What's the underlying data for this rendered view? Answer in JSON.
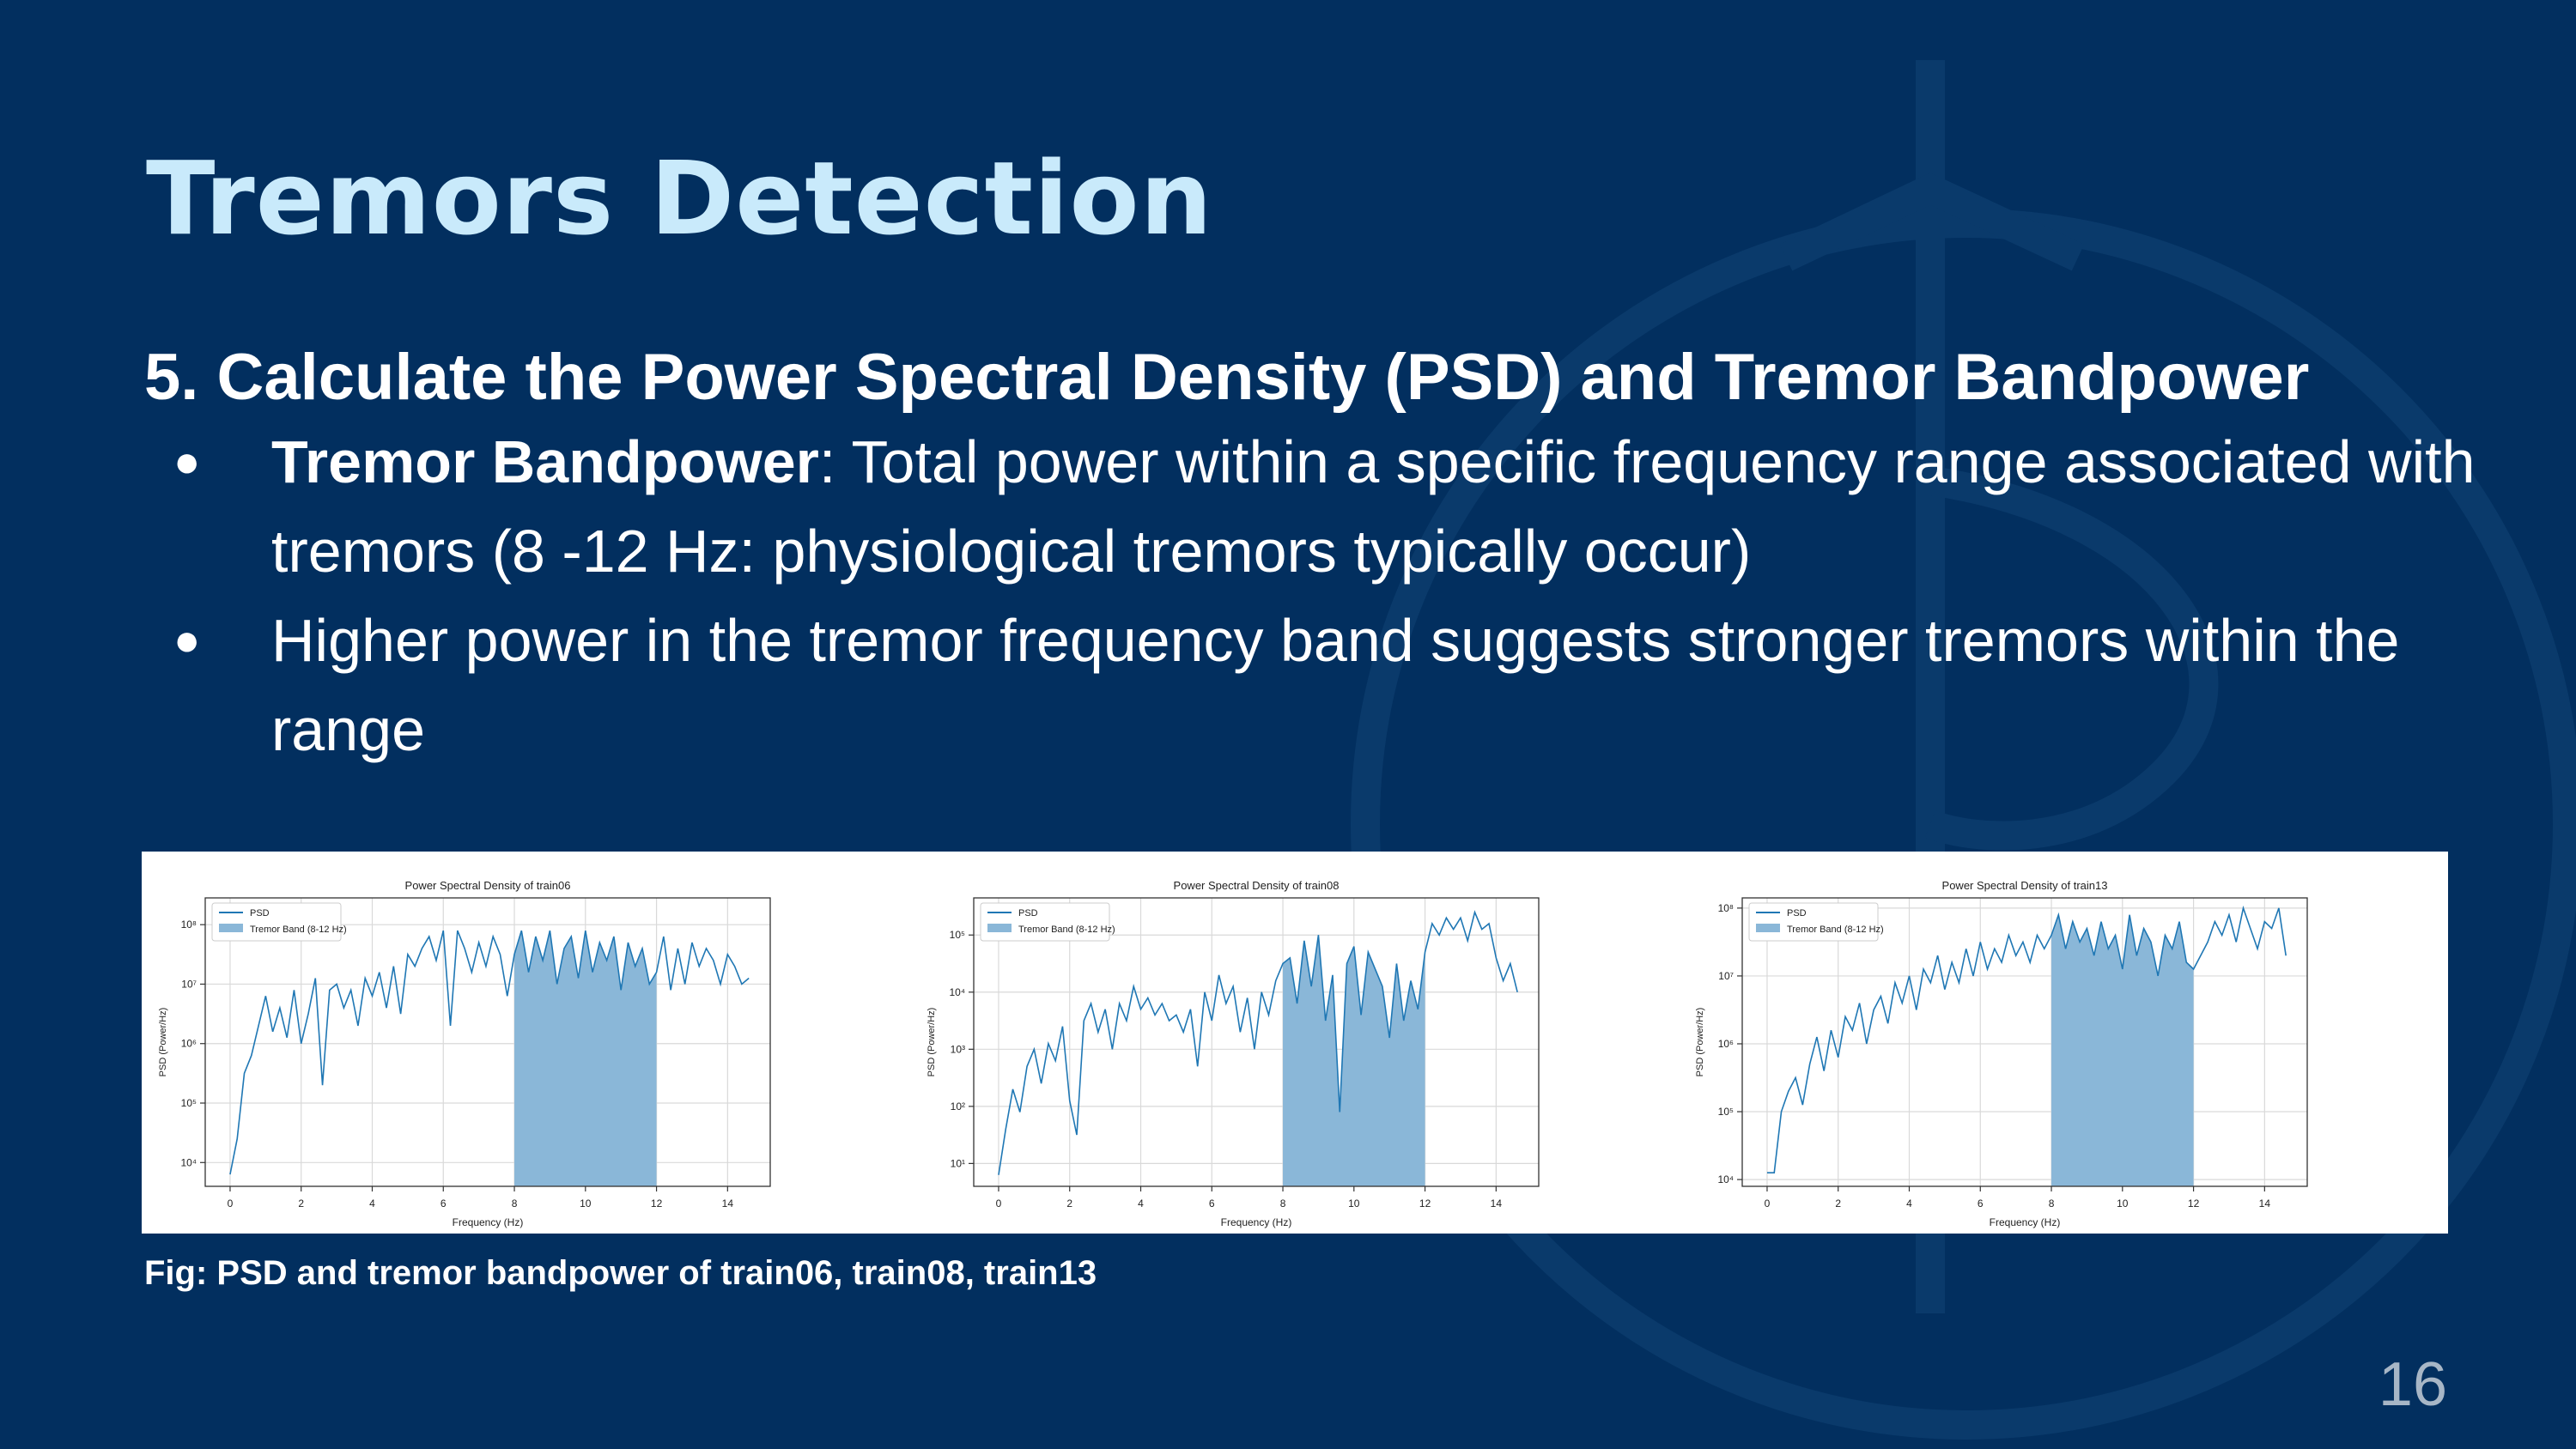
{
  "slide": {
    "title": "Tremors Detection",
    "subtitle": "5. Calculate the Power Spectral Density (PSD) and Tremor Bandpower",
    "bullets": [
      {
        "bold": "Tremor Bandpower",
        "text": ": Total power within a specific frequency range associated with tremors (8 -12 Hz: physiological tremors typically occur)"
      },
      {
        "bold": "",
        "text": "Higher power in the tremor frequency band suggests stronger tremors within the range"
      }
    ],
    "caption": "Fig: PSD and tremor bandpower of train06, train08, train13",
    "page_number": "16",
    "bullet_glyph": "●"
  },
  "colors": {
    "background": "#022f5f",
    "title": "#c9eafb",
    "psd_line": "#1f77b4",
    "band_fill": "#8ab7d8"
  },
  "chart_data": [
    {
      "type": "line",
      "title": "Power Spectral Density of train06",
      "xlabel": "Frequency (Hz)",
      "ylabel": "PSD (Power/Hz)",
      "y_scale": "log",
      "xlim": [
        -0.7,
        15.2
      ],
      "ylim_exp": [
        3.6,
        8.45
      ],
      "x_ticks": [
        "0",
        "2",
        "4",
        "6",
        "8",
        "10",
        "12",
        "14"
      ],
      "y_ticks": [
        "10⁴",
        "10⁵",
        "10⁶",
        "10⁷",
        "10⁸"
      ],
      "legend": [
        "PSD",
        "Tremor Band (8-12 Hz)"
      ],
      "legend_position": "upper-left",
      "band": [
        8,
        12
      ],
      "grid": true,
      "series": [
        {
          "x": [
            0,
            0.2,
            0.4,
            0.6,
            0.8,
            1,
            1.2,
            1.4,
            1.6,
            1.8,
            2,
            2.2,
            2.4,
            2.6,
            2.8,
            3,
            3.2,
            3.4,
            3.6,
            3.8,
            4,
            4.2,
            4.4,
            4.6,
            4.8,
            5,
            5.2,
            5.4,
            5.6,
            5.8,
            6,
            6.2,
            6.4,
            6.6,
            6.8,
            7,
            7.2,
            7.4,
            7.6,
            7.8,
            8,
            8.2,
            8.4,
            8.6,
            8.8,
            9,
            9.2,
            9.4,
            9.6,
            9.8,
            10,
            10.2,
            10.4,
            10.6,
            10.8,
            11,
            11.2,
            11.4,
            11.6,
            11.8,
            12,
            12.2,
            12.4,
            12.6,
            12.8,
            13,
            13.2,
            13.4,
            13.6,
            13.8,
            14,
            14.2,
            14.4,
            14.6
          ],
          "y_exp": [
            3.8,
            4.4,
            5.5,
            5.8,
            6.3,
            6.8,
            6.2,
            6.6,
            6.1,
            6.9,
            6.0,
            6.5,
            7.1,
            5.3,
            6.9,
            7.0,
            6.6,
            6.9,
            6.3,
            7.1,
            6.8,
            7.2,
            6.6,
            7.3,
            6.5,
            7.5,
            7.3,
            7.6,
            7.8,
            7.4,
            7.9,
            6.3,
            7.9,
            7.6,
            7.2,
            7.7,
            7.3,
            7.8,
            7.5,
            6.8,
            7.5,
            7.9,
            7.2,
            7.8,
            7.4,
            7.9,
            7.0,
            7.6,
            7.8,
            7.1,
            7.9,
            7.2,
            7.7,
            7.4,
            7.8,
            6.9,
            7.7,
            7.3,
            7.6,
            7.0,
            7.2,
            7.8,
            6.9,
            7.6,
            7.0,
            7.7,
            7.3,
            7.6,
            7.4,
            7.0,
            7.5,
            7.3,
            7.0,
            7.1
          ]
        }
      ]
    },
    {
      "type": "line",
      "title": "Power Spectral Density of train08",
      "xlabel": "Frequency (Hz)",
      "ylabel": "PSD (Power/Hz)",
      "y_scale": "log",
      "xlim": [
        -0.7,
        15.2
      ],
      "ylim_exp": [
        0.6,
        5.65
      ],
      "x_ticks": [
        "0",
        "2",
        "4",
        "6",
        "8",
        "10",
        "12",
        "14"
      ],
      "y_ticks": [
        "10¹",
        "10²",
        "10³",
        "10⁴",
        "10⁵"
      ],
      "legend": [
        "PSD",
        "Tremor Band (8-12 Hz)"
      ],
      "legend_position": "upper-left",
      "band": [
        8,
        12
      ],
      "grid": true,
      "series": [
        {
          "x": [
            0,
            0.2,
            0.4,
            0.6,
            0.8,
            1,
            1.2,
            1.4,
            1.6,
            1.8,
            2,
            2.2,
            2.4,
            2.6,
            2.8,
            3,
            3.2,
            3.4,
            3.6,
            3.8,
            4,
            4.2,
            4.4,
            4.6,
            4.8,
            5,
            5.2,
            5.4,
            5.6,
            5.8,
            6,
            6.2,
            6.4,
            6.6,
            6.8,
            7,
            7.2,
            7.4,
            7.6,
            7.8,
            8,
            8.2,
            8.4,
            8.6,
            8.8,
            9,
            9.2,
            9.4,
            9.6,
            9.8,
            10,
            10.2,
            10.4,
            10.6,
            10.8,
            11,
            11.2,
            11.4,
            11.6,
            11.8,
            12,
            12.2,
            12.4,
            12.6,
            12.8,
            13,
            13.2,
            13.4,
            13.6,
            13.8,
            14,
            14.2,
            14.4,
            14.6
          ],
          "y_exp": [
            0.8,
            1.6,
            2.3,
            1.9,
            2.7,
            3.0,
            2.4,
            3.1,
            2.8,
            3.4,
            2.1,
            1.5,
            3.5,
            3.8,
            3.3,
            3.7,
            3.0,
            3.8,
            3.5,
            4.1,
            3.7,
            3.9,
            3.6,
            3.8,
            3.5,
            3.6,
            3.3,
            3.7,
            2.7,
            4.0,
            3.5,
            4.3,
            3.8,
            4.1,
            3.3,
            3.9,
            3.0,
            4.0,
            3.6,
            4.2,
            4.5,
            4.6,
            3.8,
            4.9,
            4.1,
            5.0,
            3.5,
            4.3,
            1.9,
            4.5,
            4.8,
            3.6,
            4.7,
            4.4,
            4.1,
            3.2,
            4.5,
            3.5,
            4.2,
            3.7,
            4.7,
            5.2,
            5.0,
            5.3,
            5.1,
            5.3,
            4.9,
            5.4,
            5.1,
            5.2,
            4.6,
            4.2,
            4.5,
            4.0
          ]
        }
      ]
    },
    {
      "type": "line",
      "title": "Power Spectral Density of train13",
      "xlabel": "Frequency (Hz)",
      "ylabel": "PSD (Power/Hz)",
      "y_scale": "log",
      "xlim": [
        -0.7,
        15.2
      ],
      "ylim_exp": [
        3.9,
        8.15
      ],
      "x_ticks": [
        "0",
        "2",
        "4",
        "6",
        "8",
        "10",
        "12",
        "14"
      ],
      "y_ticks": [
        "10⁴",
        "10⁵",
        "10⁶",
        "10⁷",
        "10⁸"
      ],
      "legend": [
        "PSD",
        "Tremor Band (8-12 Hz)"
      ],
      "legend_position": "upper-left",
      "band": [
        8,
        12
      ],
      "grid": true,
      "series": [
        {
          "x": [
            0,
            0.2,
            0.4,
            0.6,
            0.8,
            1,
            1.2,
            1.4,
            1.6,
            1.8,
            2,
            2.2,
            2.4,
            2.6,
            2.8,
            3,
            3.2,
            3.4,
            3.6,
            3.8,
            4,
            4.2,
            4.4,
            4.6,
            4.8,
            5,
            5.2,
            5.4,
            5.6,
            5.8,
            6,
            6.2,
            6.4,
            6.6,
            6.8,
            7,
            7.2,
            7.4,
            7.6,
            7.8,
            8,
            8.2,
            8.4,
            8.6,
            8.8,
            9,
            9.2,
            9.4,
            9.6,
            9.8,
            10,
            10.2,
            10.4,
            10.6,
            10.8,
            11,
            11.2,
            11.4,
            11.6,
            11.8,
            12,
            12.2,
            12.4,
            12.6,
            12.8,
            13,
            13.2,
            13.4,
            13.6,
            13.8,
            14,
            14.2,
            14.4,
            14.6
          ],
          "y_exp": [
            4.1,
            4.1,
            5.0,
            5.3,
            5.5,
            5.1,
            5.7,
            6.1,
            5.6,
            6.2,
            5.8,
            6.4,
            6.2,
            6.6,
            6.0,
            6.5,
            6.7,
            6.3,
            6.9,
            6.6,
            7.0,
            6.5,
            7.1,
            6.9,
            7.3,
            6.8,
            7.2,
            6.9,
            7.4,
            7.0,
            7.5,
            7.1,
            7.4,
            7.2,
            7.6,
            7.3,
            7.5,
            7.2,
            7.6,
            7.4,
            7.6,
            7.9,
            7.4,
            7.8,
            7.5,
            7.7,
            7.3,
            7.8,
            7.4,
            7.6,
            7.1,
            7.9,
            7.3,
            7.7,
            7.5,
            7.0,
            7.6,
            7.4,
            7.8,
            7.2,
            7.1,
            7.3,
            7.5,
            7.8,
            7.6,
            7.9,
            7.5,
            8.0,
            7.7,
            7.4,
            7.8,
            7.7,
            8.0,
            7.3
          ]
        }
      ]
    }
  ]
}
